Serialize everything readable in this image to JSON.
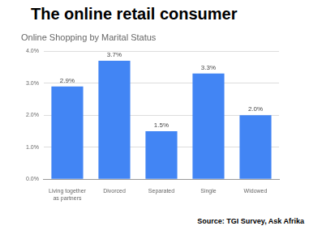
{
  "heading": "The online retail consumer",
  "source": "Source: TGI Survey, Ask Afrika",
  "chart_data": {
    "type": "bar",
    "title": "Online Shopping by Marital Status",
    "categories": [
      "Living together as partners",
      "Divorced",
      "Separated",
      "Single",
      "Widowed"
    ],
    "values": [
      2.9,
      3.7,
      1.5,
      3.3,
      2.0
    ],
    "value_labels": [
      "2.9%",
      "3.7%",
      "1.5%",
      "3.3%",
      "2.0%"
    ],
    "data_labels": true,
    "color": "#4285f4",
    "ylim": [
      0,
      4
    ],
    "yticks": [
      {
        "value": 0,
        "label": "0.0%"
      },
      {
        "value": 1,
        "label": "1.0%"
      },
      {
        "value": 2,
        "label": "2.0%"
      },
      {
        "value": 3,
        "label": "3.0%"
      },
      {
        "value": 4,
        "label": "4.0%"
      }
    ],
    "grid": true
  }
}
